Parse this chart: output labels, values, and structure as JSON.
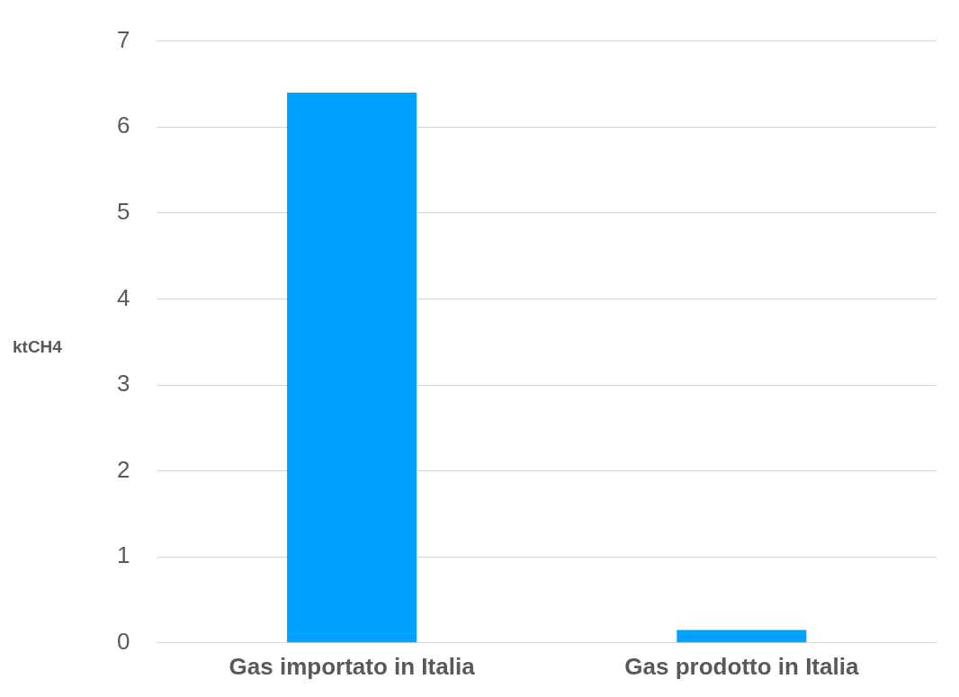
{
  "chart_data": {
    "type": "bar",
    "ylabel": "ktCH4",
    "categories": [
      "Gas importato in Italia",
      "Gas prodotto in Italia"
    ],
    "values": [
      6.4,
      0.15
    ],
    "color": "#00a2ff",
    "ylim": [
      0,
      7
    ],
    "yticks": [
      0,
      1,
      2,
      3,
      4,
      5,
      6,
      7
    ],
    "grid": "y",
    "legend": false
  }
}
